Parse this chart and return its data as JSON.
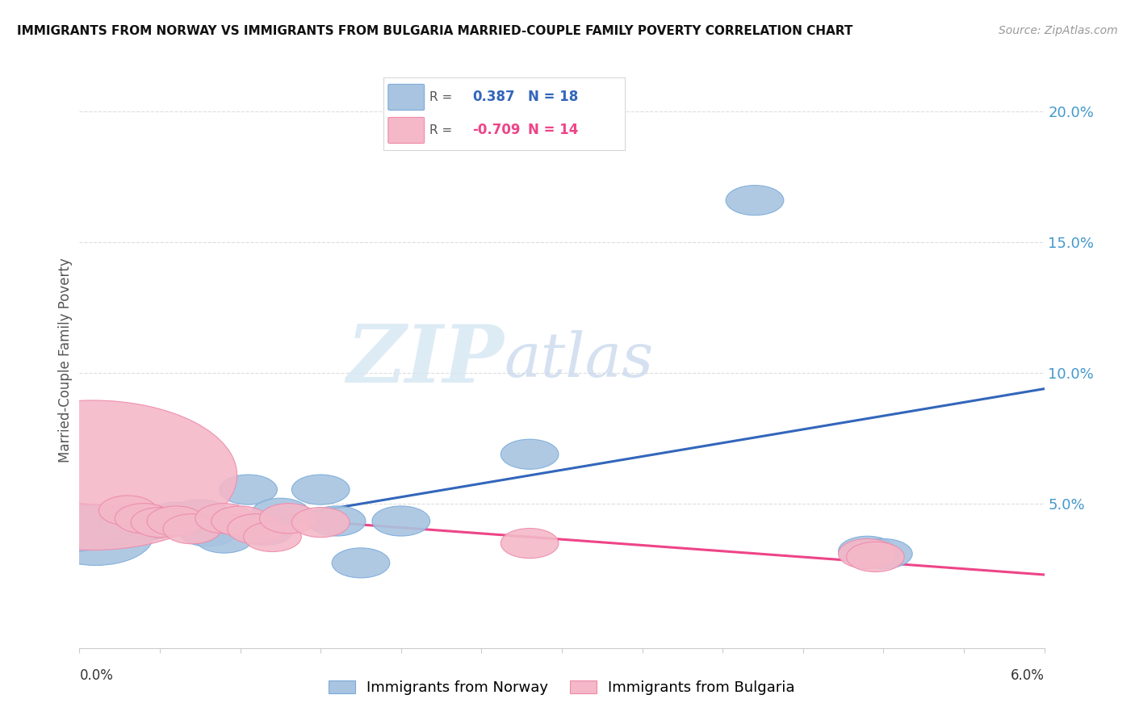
{
  "title": "IMMIGRANTS FROM NORWAY VS IMMIGRANTS FROM BULGARIA MARRIED-COUPLE FAMILY POVERTY CORRELATION CHART",
  "source": "Source: ZipAtlas.com",
  "ylabel": "Married-Couple Family Poverty",
  "yticks": [
    0.0,
    0.05,
    0.1,
    0.15,
    0.2
  ],
  "ytick_labels": [
    "",
    "5.0%",
    "10.0%",
    "15.0%",
    "20.0%"
  ],
  "xlim": [
    0.0,
    0.06
  ],
  "ylim": [
    -0.005,
    0.215
  ],
  "norway_color": "#A8C4E0",
  "norway_edge_color": "#7AABDA",
  "bulgaria_color": "#F4B8C8",
  "bulgaria_edge_color": "#EE8AAA",
  "norway_line_color": "#3366BB",
  "bulgaria_line_color": "#EE4488",
  "norway_R": 0.387,
  "norway_N": 18,
  "bulgaria_R": -0.709,
  "bulgaria_N": 14,
  "norway_points": [
    [
      0.001,
      0.038,
      80
    ],
    [
      0.003,
      0.042,
      40
    ],
    [
      0.004,
      0.043,
      40
    ],
    [
      0.0055,
      0.044,
      40
    ],
    [
      0.006,
      0.045,
      40
    ],
    [
      0.0075,
      0.046,
      40
    ],
    [
      0.008,
      0.0395,
      40
    ],
    [
      0.009,
      0.037,
      40
    ],
    [
      0.0105,
      0.0555,
      40
    ],
    [
      0.0115,
      0.04,
      40
    ],
    [
      0.0125,
      0.0465,
      40
    ],
    [
      0.015,
      0.0555,
      40
    ],
    [
      0.016,
      0.0435,
      40
    ],
    [
      0.0175,
      0.0275,
      40
    ],
    [
      0.02,
      0.0435,
      40
    ],
    [
      0.028,
      0.069,
      40
    ],
    [
      0.042,
      0.166,
      40
    ],
    [
      0.049,
      0.032,
      40
    ],
    [
      0.05,
      0.031,
      40
    ]
  ],
  "bulgaria_points": [
    [
      0.0008,
      0.061,
      200
    ],
    [
      0.003,
      0.0475,
      40
    ],
    [
      0.004,
      0.0445,
      40
    ],
    [
      0.005,
      0.043,
      40
    ],
    [
      0.006,
      0.0435,
      40
    ],
    [
      0.007,
      0.0405,
      40
    ],
    [
      0.009,
      0.0445,
      40
    ],
    [
      0.01,
      0.0435,
      40
    ],
    [
      0.011,
      0.0405,
      40
    ],
    [
      0.012,
      0.0375,
      40
    ],
    [
      0.013,
      0.0445,
      40
    ],
    [
      0.015,
      0.043,
      40
    ],
    [
      0.028,
      0.035,
      40
    ],
    [
      0.049,
      0.031,
      40
    ],
    [
      0.0495,
      0.0298,
      40
    ]
  ],
  "norway_line_x": [
    0.0,
    0.06
  ],
  "norway_line_y": [
    0.032,
    0.094
  ],
  "bulgaria_line_x": [
    0.0,
    0.06
  ],
  "bulgaria_line_y": [
    0.05,
    0.023
  ],
  "watermark_zip": "ZIP",
  "watermark_atlas": "atlas",
  "background_color": "#FFFFFF",
  "grid_color": "#DDDDDD",
  "legend_norway_text1": "R =",
  "legend_norway_val": "0.387",
  "legend_norway_n": "N = 18",
  "legend_bulgaria_text1": "R =",
  "legend_bulgaria_val": "-0.709",
  "legend_bulgaria_n": "N = 14"
}
